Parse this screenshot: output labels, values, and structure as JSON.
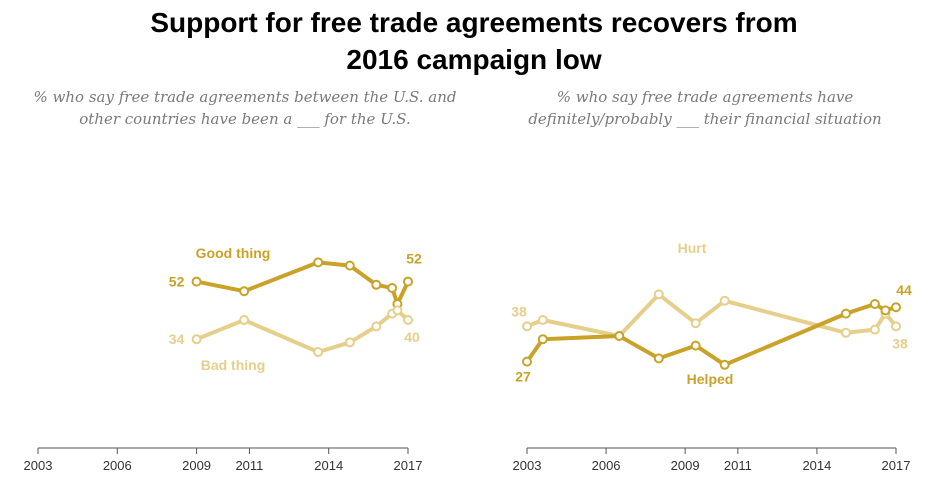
{
  "title_line1": "Support for free trade agreements recovers from",
  "title_line2": "2016 campaign low",
  "colors": {
    "dark": "#c9a227",
    "light": "#e5cf8a",
    "axis": "#555555",
    "text": "#333333"
  },
  "chart_data": [
    {
      "type": "line",
      "subtitle": "% who say free trade agreements between the U.S. and other countries have been a ___ for the U.S.",
      "xlim": [
        2003,
        2017
      ],
      "ylim": [
        0,
        100
      ],
      "xticks": [
        2003,
        2006,
        2009,
        2011,
        2014,
        2017
      ],
      "series": [
        {
          "name": "Good thing",
          "tone": "dark",
          "x": [
            2009.0,
            2010.8,
            2013.6,
            2014.8,
            2015.8,
            2016.4,
            2016.6,
            2017.0
          ],
          "y": [
            52,
            49,
            58,
            57,
            51,
            50,
            45,
            52
          ],
          "first_label": "52",
          "last_label": "52"
        },
        {
          "name": "Bad thing",
          "tone": "light",
          "x": [
            2009.0,
            2010.8,
            2013.6,
            2014.8,
            2015.8,
            2016.4,
            2016.6,
            2017.0
          ],
          "y": [
            34,
            40,
            30,
            33,
            38,
            42,
            43,
            40
          ],
          "first_label": "34",
          "last_label": "40"
        }
      ]
    },
    {
      "type": "line",
      "subtitle": "% who say free trade agreements have definitely/probably ___ their financial situation",
      "xlim": [
        2003,
        2017
      ],
      "ylim": [
        0,
        100
      ],
      "xticks": [
        2003,
        2006,
        2009,
        2011,
        2014,
        2017
      ],
      "series": [
        {
          "name": "Hurt",
          "tone": "light",
          "x": [
            2003.0,
            2003.6,
            2006.5,
            2008.0,
            2009.4,
            2010.5,
            2015.1,
            2016.2,
            2016.6,
            2017.0
          ],
          "y": [
            38,
            40,
            35,
            48,
            39,
            46,
            36,
            37,
            42,
            38
          ],
          "first_label": "38",
          "last_label": "38"
        },
        {
          "name": "Helped",
          "tone": "dark",
          "x": [
            2003.0,
            2003.6,
            2006.5,
            2008.0,
            2009.4,
            2010.5,
            2015.1,
            2016.2,
            2016.6,
            2017.0
          ],
          "y": [
            27,
            34,
            35,
            28,
            32,
            26,
            42,
            45,
            43,
            44
          ],
          "first_label": "27",
          "last_label": "44"
        }
      ]
    }
  ]
}
